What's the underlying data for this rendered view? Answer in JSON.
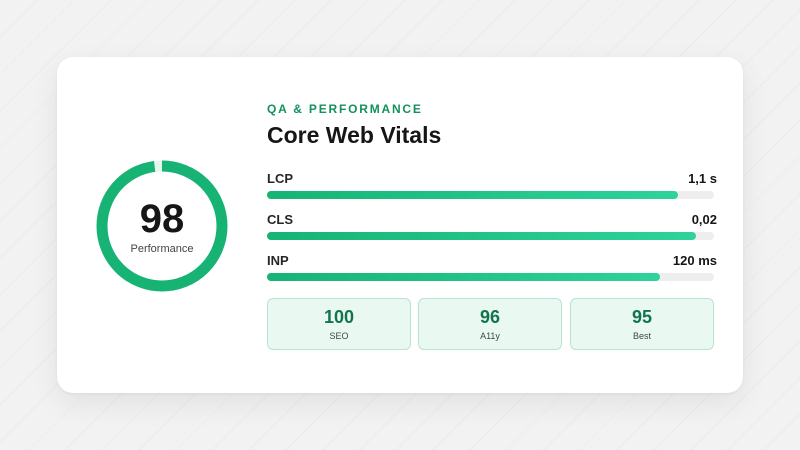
{
  "header": {
    "eyebrow": "QA & PERFORMANCE",
    "title": "Core Web Vitals"
  },
  "gauge": {
    "score": "98",
    "label": "Performance",
    "fraction": 0.98,
    "color": "#16b375",
    "track_color": "#e6f5ee"
  },
  "metrics": [
    {
      "label": "LCP",
      "value": "1,1 s",
      "fill": 0.92
    },
    {
      "label": "CLS",
      "value": "0,02",
      "fill": 0.96
    },
    {
      "label": "INP",
      "value": "120 ms",
      "fill": 0.88
    }
  ],
  "tiles": [
    {
      "value": "100",
      "label": "SEO"
    },
    {
      "value": "96",
      "label": "A11y"
    },
    {
      "value": "95",
      "label": "Best"
    }
  ],
  "colors": {
    "accent": "#13915e",
    "bar_start": "#16b375",
    "bar_end": "#2ed39a",
    "tile_bg": "#e9f8f1",
    "tile_border": "#b7e6d0"
  }
}
